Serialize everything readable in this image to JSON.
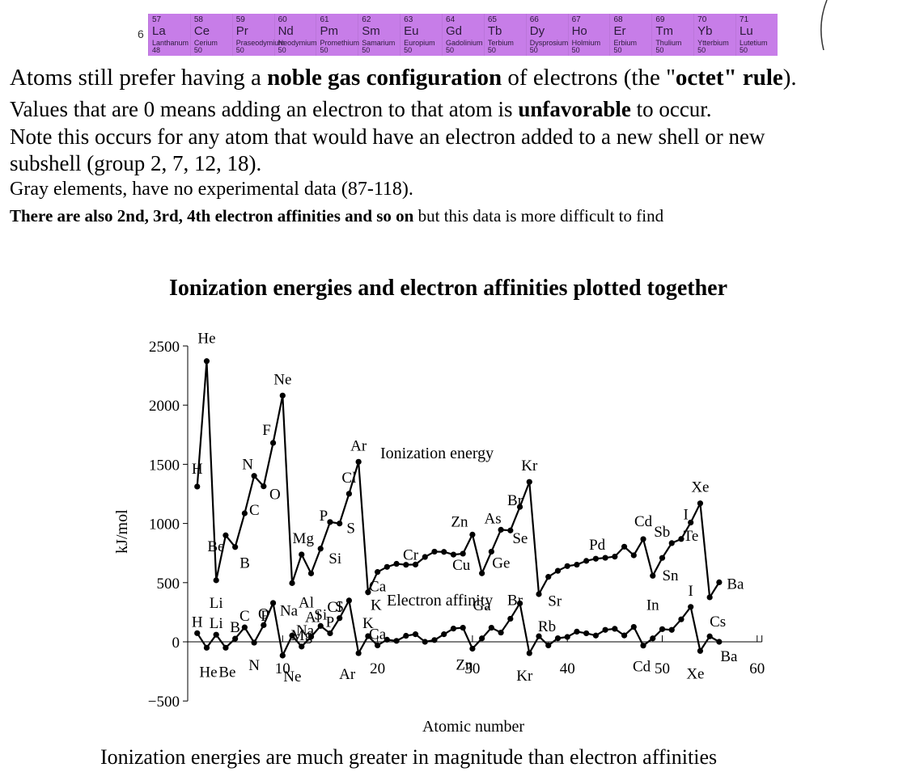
{
  "lanthanides": {
    "row_label": "6",
    "elements": [
      {
        "number": "57",
        "symbol": "La",
        "name": "Lanthanum",
        "count": "48"
      },
      {
        "number": "58",
        "symbol": "Ce",
        "name": "Cerium",
        "count": "50"
      },
      {
        "number": "59",
        "symbol": "Pr",
        "name": "Praseodymium",
        "count": "50"
      },
      {
        "number": "60",
        "symbol": "Nd",
        "name": "Neodymium",
        "count": "50"
      },
      {
        "number": "61",
        "symbol": "Pm",
        "name": "Promethium",
        "count": "50"
      },
      {
        "number": "62",
        "symbol": "Sm",
        "name": "Samarium",
        "count": "50"
      },
      {
        "number": "63",
        "symbol": "Eu",
        "name": "Europium",
        "count": "50"
      },
      {
        "number": "64",
        "symbol": "Gd",
        "name": "Gadolinium",
        "count": "50"
      },
      {
        "number": "65",
        "symbol": "Tb",
        "name": "Terbium",
        "count": "50"
      },
      {
        "number": "66",
        "symbol": "Dy",
        "name": "Dysprosium",
        "count": "50"
      },
      {
        "number": "67",
        "symbol": "Ho",
        "name": "Holmium",
        "count": "50"
      },
      {
        "number": "68",
        "symbol": "Er",
        "name": "Erbium",
        "count": "50"
      },
      {
        "number": "69",
        "symbol": "Tm",
        "name": "Thulium",
        "count": "50"
      },
      {
        "number": "70",
        "symbol": "Yb",
        "name": "Ytterbium",
        "count": "50"
      },
      {
        "number": "71",
        "symbol": "Lu",
        "name": "Lutetium",
        "count": "50"
      }
    ],
    "color": "#c77de8"
  },
  "text": {
    "line1_pre": "Atoms still prefer having a ",
    "line1_bold1": "noble gas configuration",
    "line1_mid": " of electrons (the \"",
    "line1_bold2": "octet\" rule",
    "line1_end": ").",
    "line2_pre": "Values that are 0 means adding an electron to that atom is ",
    "line2_bold": "unfavorable",
    "line2_end": " to occur.",
    "line3": "Note this occurs for any atom that would have an electron added to a new shell or new",
    "line4": "subshell (group 2, 7, 12, 18).",
    "line5": "Gray elements, have no experimental data (87-118).",
    "line6_bold": "There are also 2nd, 3rd, 4th electron affinities and so on",
    "line6_end": " but this data is more difficult to find",
    "bottom": "Ionization energies are much greater in magnitude than electron affinities"
  },
  "chart_data": {
    "type": "line",
    "title": "Ionization energies and electron affinities plotted together",
    "xlabel": "Atomic number",
    "ylabel": "kJ/mol",
    "xlim": [
      0,
      61
    ],
    "ylim": [
      -500,
      2500
    ],
    "xticks": [
      10,
      20,
      30,
      40,
      50,
      60
    ],
    "yticks": [
      -500,
      0,
      500,
      1000,
      1500,
      2000,
      2500
    ],
    "series": [
      {
        "name": "Ionization energy",
        "x": [
          1,
          2,
          3,
          4,
          5,
          6,
          7,
          8,
          9,
          10,
          11,
          12,
          13,
          14,
          15,
          16,
          17,
          18,
          19,
          20,
          21,
          22,
          23,
          24,
          25,
          26,
          27,
          28,
          29,
          30,
          31,
          32,
          33,
          34,
          35,
          36,
          37,
          38,
          39,
          40,
          41,
          42,
          43,
          44,
          45,
          46,
          47,
          48,
          49,
          50,
          51,
          52,
          53,
          54,
          55,
          56
        ],
        "values": [
          1312,
          2372,
          520,
          900,
          801,
          1086,
          1402,
          1314,
          1681,
          2081,
          496,
          738,
          578,
          787,
          1012,
          1000,
          1251,
          1521,
          419,
          590,
          633,
          659,
          651,
          653,
          717,
          762,
          760,
          737,
          745,
          906,
          579,
          762,
          947,
          941,
          1140,
          1351,
          403,
          549,
          600,
          640,
          652,
          684,
          702,
          710,
          720,
          804,
          731,
          868,
          558,
          709,
          834,
          869,
          1008,
          1170,
          376,
          503
        ],
        "point_labels": [
          "H",
          "He",
          "Li",
          "Be",
          "B",
          "C",
          "N",
          "O",
          "F",
          "Ne",
          "Na",
          "Mg",
          "Al",
          "Si",
          "P",
          "S",
          "Cl",
          "Ar",
          "K",
          "Ca",
          "",
          "",
          "",
          "Cr",
          "",
          "",
          "",
          "",
          "Cu",
          "Zn",
          "Ga",
          "Ge",
          "As",
          "Se",
          "Br",
          "Kr",
          "Rb",
          "Sr",
          "",
          "",
          "",
          "",
          "",
          "Pd",
          "",
          "",
          "",
          "Cd",
          "In",
          "Sn",
          "Sb",
          "Te",
          "I",
          "Xe",
          "Cs",
          "Ba"
        ]
      },
      {
        "name": "Electron affinity",
        "x": [
          1,
          2,
          3,
          4,
          5,
          6,
          7,
          8,
          9,
          10,
          11,
          12,
          13,
          14,
          15,
          16,
          17,
          18,
          19,
          20,
          21,
          22,
          23,
          24,
          25,
          26,
          27,
          28,
          29,
          30,
          31,
          32,
          33,
          34,
          35,
          36,
          37,
          38,
          39,
          40,
          41,
          42,
          43,
          44,
          45,
          46,
          47,
          48,
          49,
          50,
          51,
          52,
          53,
          54,
          55,
          56
        ],
        "values": [
          73,
          -50,
          60,
          -50,
          27,
          122,
          -7,
          141,
          328,
          -116,
          53,
          -40,
          43,
          134,
          72,
          200,
          349,
          -96,
          48,
          -30,
          18,
          8,
          51,
          64,
          0,
          15,
          64,
          112,
          119,
          -58,
          29,
          119,
          78,
          195,
          325,
          -96,
          47,
          -30,
          30,
          41,
          86,
          72,
          53,
          101,
          110,
          54,
          126,
          -32,
          29,
          107,
          101,
          190,
          295,
          -77,
          46,
          0
        ],
        "point_labels": [
          "H",
          "He",
          "Li",
          "Be",
          "B",
          "C",
          "N",
          "O",
          "F",
          "Ne",
          "Na",
          "Mg",
          "Al",
          "Si",
          "P",
          "S",
          "Cl",
          "Ar",
          "K",
          "Ca",
          "",
          "",
          "",
          "",
          "",
          "",
          "",
          "",
          "",
          "Zn",
          "",
          "",
          "",
          "",
          "Br",
          "Kr",
          "",
          "",
          "",
          "",
          "",
          "",
          "",
          "",
          "",
          "",
          "",
          "Cd",
          "",
          "",
          "",
          "",
          "I",
          "Xe",
          "",
          "Ba"
        ]
      }
    ],
    "series_annotations": [
      "Ionization energy",
      "Electron affinity"
    ]
  }
}
